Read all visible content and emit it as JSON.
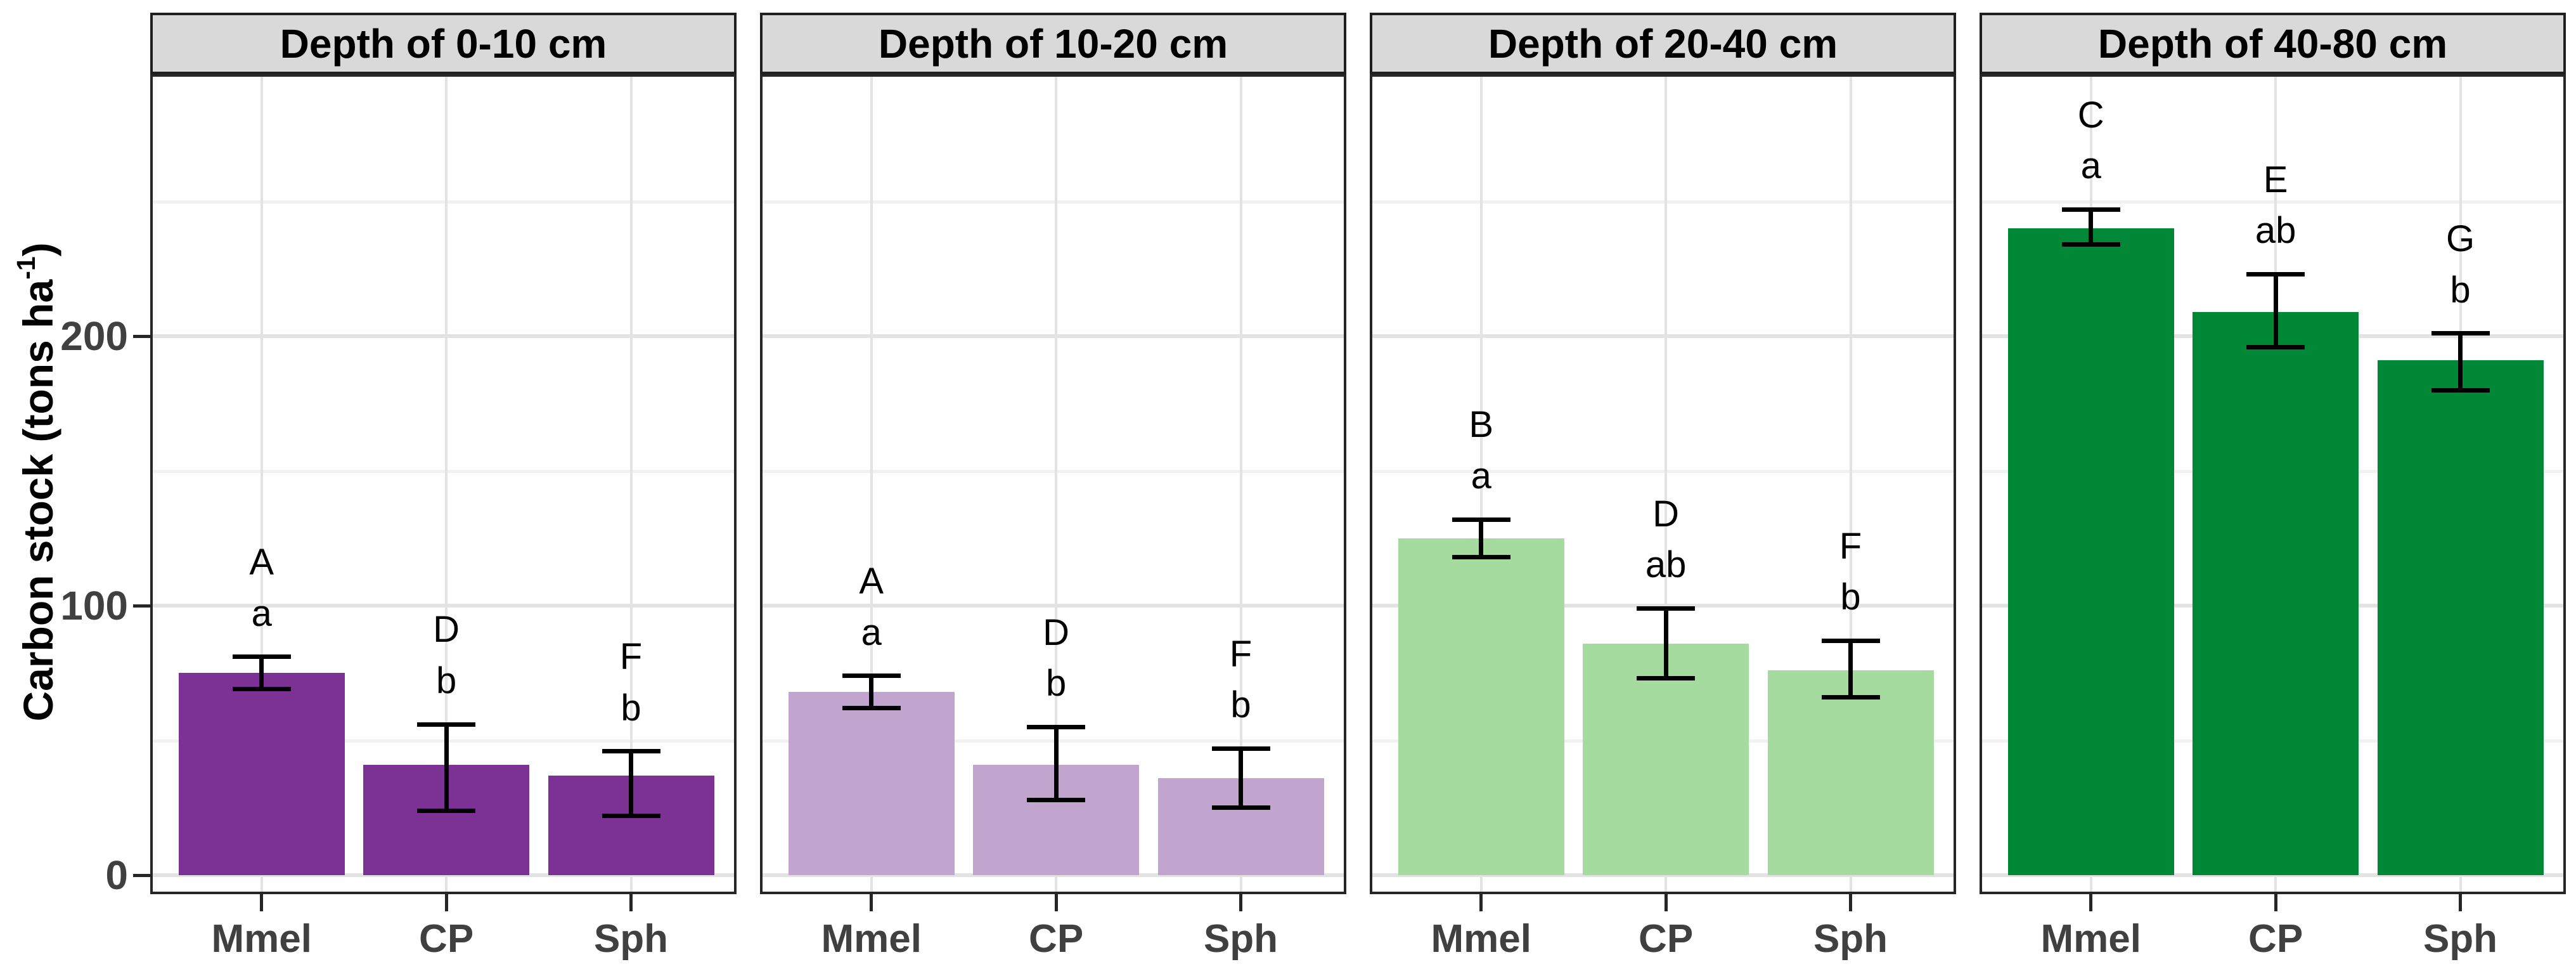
{
  "y_axis": {
    "label_prefix": "Carbon stock (tons ha",
    "label_superscript": "-1",
    "label_suffix": ")",
    "tick_labels": [
      "0",
      "100",
      "200"
    ]
  },
  "chart_data": {
    "type": "bar",
    "title": "",
    "xlabel": "",
    "ylabel": "Carbon stock (tons ha^-1)",
    "categories": [
      "Mmel",
      "CP",
      "Sph"
    ],
    "yticks": [
      0,
      100,
      200
    ],
    "minor_ticks": [
      50,
      150,
      250
    ],
    "ylim": [
      0,
      297
    ],
    "grid": "on",
    "legend": "none",
    "facet_strip_bg": "#d9d9d9",
    "panel_border_color": "#262626",
    "major_grid_color": "#e3e3e3",
    "minor_grid_color": "#f1f1f1",
    "tick_text_color": "#404040",
    "error_bar_color": "#000000",
    "panels": [
      {
        "facet": "Depth of 0-10 cm",
        "color": "#7b3294",
        "series": [
          {
            "category": "Mmel",
            "value": 75,
            "err_lo": 69,
            "err_hi": 81,
            "letter_upper": "A",
            "letter_lower": "a"
          },
          {
            "category": "CP",
            "value": 41,
            "err_lo": 24,
            "err_hi": 56,
            "letter_upper": "D",
            "letter_lower": "b"
          },
          {
            "category": "Sph",
            "value": 37,
            "err_lo": 22,
            "err_hi": 46,
            "letter_upper": "F",
            "letter_lower": "b"
          }
        ]
      },
      {
        "facet": "Depth of 10-20 cm",
        "color": "#c2a5cf",
        "series": [
          {
            "category": "Mmel",
            "value": 68,
            "err_lo": 62,
            "err_hi": 74,
            "letter_upper": "A",
            "letter_lower": "a"
          },
          {
            "category": "CP",
            "value": 41,
            "err_lo": 28,
            "err_hi": 55,
            "letter_upper": "D",
            "letter_lower": "b"
          },
          {
            "category": "Sph",
            "value": 36,
            "err_lo": 25,
            "err_hi": 47,
            "letter_upper": "F",
            "letter_lower": "b"
          }
        ]
      },
      {
        "facet": "Depth of 20-40 cm",
        "color": "#a6dba0",
        "series": [
          {
            "category": "Mmel",
            "value": 125,
            "err_lo": 118,
            "err_hi": 132,
            "letter_upper": "B",
            "letter_lower": "a"
          },
          {
            "category": "CP",
            "value": 86,
            "err_lo": 73,
            "err_hi": 99,
            "letter_upper": "D",
            "letter_lower": "ab"
          },
          {
            "category": "Sph",
            "value": 76,
            "err_lo": 66,
            "err_hi": 87,
            "letter_upper": "F",
            "letter_lower": "b"
          }
        ]
      },
      {
        "facet": "Depth of 40-80 cm",
        "color": "#008837",
        "series": [
          {
            "category": "Mmel",
            "value": 240,
            "err_lo": 234,
            "err_hi": 247,
            "letter_upper": "C",
            "letter_lower": "a"
          },
          {
            "category": "CP",
            "value": 209,
            "err_lo": 196,
            "err_hi": 223,
            "letter_upper": "E",
            "letter_lower": "ab"
          },
          {
            "category": "Sph",
            "value": 191,
            "err_lo": 180,
            "err_hi": 201,
            "letter_upper": "G",
            "letter_lower": "b"
          }
        ]
      }
    ]
  }
}
